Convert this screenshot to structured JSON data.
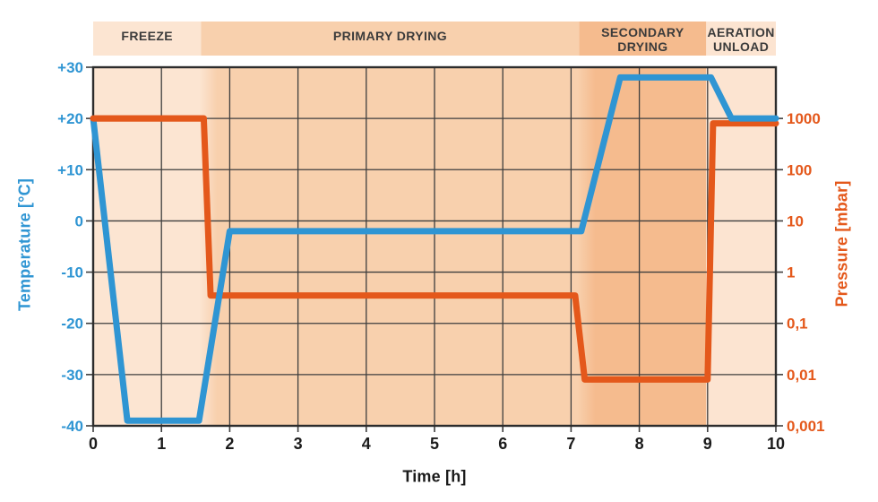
{
  "chart_data": {
    "type": "line",
    "title": "",
    "xlabel": "Time [h]",
    "x_range": [
      0,
      10
    ],
    "x_tick_values": [
      0,
      1,
      2,
      3,
      4,
      5,
      6,
      7,
      8,
      9,
      10
    ],
    "x_tick_labels": [
      "0",
      "1",
      "2",
      "3",
      "4",
      "5",
      "6",
      "7",
      "8",
      "9",
      "10"
    ],
    "grid": {
      "on": true,
      "color": "#3e3e3e",
      "border_color": "#2c2c2c"
    },
    "left_axis": {
      "title": "Temperature [°C]",
      "color": "#2f95d3",
      "range": [
        -40,
        30
      ],
      "tick_values": [
        30,
        20,
        10,
        0,
        -10,
        -20,
        -30,
        -40
      ],
      "tick_labels": [
        "+30",
        "+20",
        "+10",
        "0",
        "-10",
        "-20",
        "-30",
        "-40"
      ]
    },
    "right_axis": {
      "title": "Pressure [mbar]",
      "color": "#e4581b",
      "scale": "log",
      "range": [
        0.001,
        1000
      ],
      "tick_values": [
        1000,
        100,
        10,
        1,
        0.1,
        0.01,
        0.001
      ],
      "tick_labels": [
        "1000",
        "100",
        "10",
        "1",
        "0,1",
        "0,01",
        "0,001"
      ]
    },
    "phases": [
      {
        "label_lines": [
          "FREEZE"
        ],
        "start_h": 0,
        "end_h": 1.58,
        "color": "#fce5d2"
      },
      {
        "label_lines": [
          "PRIMARY DRYING"
        ],
        "start_h": 1.58,
        "end_h": 7.12,
        "color": "#f8d0ad"
      },
      {
        "label_lines": [
          "SECONDARY",
          "DRYING"
        ],
        "start_h": 7.12,
        "end_h": 8.98,
        "color": "#f5bb8e"
      },
      {
        "label_lines": [
          "AERATION",
          "UNLOAD"
        ],
        "start_h": 8.98,
        "end_h": 10,
        "color": "#fce4d1"
      }
    ],
    "series": [
      {
        "name": "Temperature",
        "axis": "left",
        "unit": "°C",
        "color": "#2f95d3",
        "points": [
          [
            0,
            20
          ],
          [
            0.5,
            -39
          ],
          [
            1.55,
            -39
          ],
          [
            2.0,
            -2
          ],
          [
            7.15,
            -2
          ],
          [
            7.72,
            28
          ],
          [
            9.05,
            28
          ],
          [
            9.35,
            20
          ],
          [
            10,
            20
          ]
        ]
      },
      {
        "name": "Pressure",
        "axis": "right",
        "unit": "mbar",
        "color": "#e4581b",
        "points": [
          [
            0,
            1000
          ],
          [
            1.62,
            1000
          ],
          [
            1.72,
            0.35
          ],
          [
            7.06,
            0.35
          ],
          [
            7.2,
            0.008
          ],
          [
            9.0,
            0.008
          ],
          [
            9.08,
            800
          ],
          [
            10,
            800
          ]
        ]
      }
    ],
    "phase_label_color": "#3b3b3b"
  }
}
